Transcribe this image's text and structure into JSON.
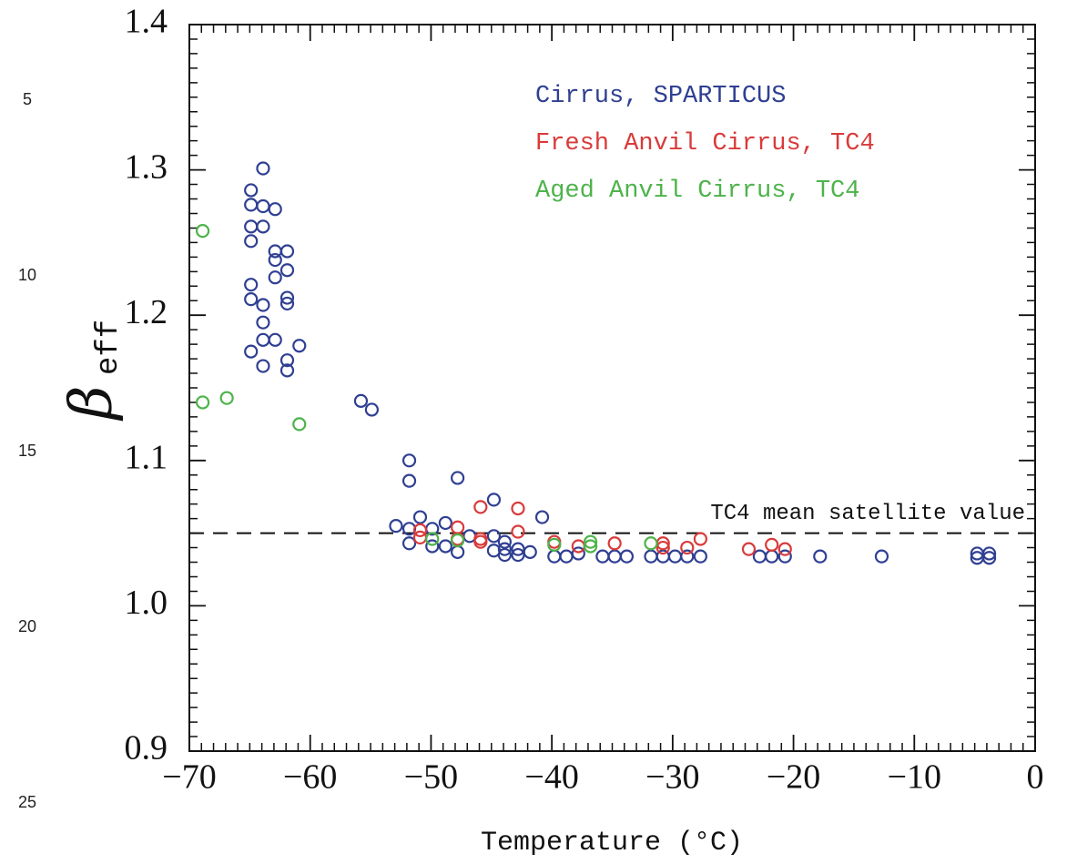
{
  "line_numbers": [
    "5",
    "10",
    "15",
    "20",
    "25"
  ],
  "chart_data": {
    "type": "scatter",
    "xlabel": "Temperature (°C)",
    "ylabel": "β",
    "ylabel_subscript": "eff",
    "xlim": [
      -70,
      0
    ],
    "ylim": [
      0.9,
      1.4
    ],
    "xticks": [
      {
        "value": -70,
        "label": "−70"
      },
      {
        "value": -60,
        "label": "−60"
      },
      {
        "value": -50,
        "label": "−50"
      },
      {
        "value": -40,
        "label": "−40"
      },
      {
        "value": -30,
        "label": "−30"
      },
      {
        "value": -20,
        "label": "−20"
      },
      {
        "value": -10,
        "label": "−10"
      },
      0
    ],
    "yticks": [
      0.9,
      {
        "value": 1,
        "label": "1.0"
      },
      1.1,
      1.2,
      1.3,
      1.4
    ],
    "reference_line": {
      "value": 1.05,
      "label": "TC4 mean satellite value"
    },
    "legend": "upper right",
    "series": [
      {
        "name": "Cirrus, SPARTICUS",
        "color": "#2f3f92",
        "x": [
          -63.9,
          -64.9,
          -64.9,
          -63.9,
          -62.9,
          -64.9,
          -63.9,
          -64.9,
          -62.9,
          -61.9,
          -62.9,
          -61.9,
          -62.9,
          -64.9,
          -64.9,
          -63.9,
          -61.9,
          -61.9,
          -63.9,
          -64.9,
          -63.9,
          -62.9,
          -60.9,
          -63.9,
          -61.9,
          -61.9,
          -55.8,
          -54.9,
          -51.8,
          -51.8,
          -47.8,
          -44.8,
          -40.8,
          -50.9,
          -52.9,
          -51.8,
          -48.8,
          -49.9,
          -51.8,
          -49.9,
          -48.8,
          -47.8,
          -44.8,
          -44.8,
          -43.9,
          -43.9,
          -43.9,
          -42.8,
          -42.8,
          -41.8,
          -46.8,
          -39.8,
          -38.8,
          -37.8,
          -35.8,
          -34.8,
          -33.8,
          -31.8,
          -30.8,
          -29.8,
          -28.8,
          -27.7,
          -22.8,
          -21.8,
          -20.7,
          -17.8,
          -12.7,
          -4.8,
          -4.8,
          -3.8,
          -3.8
        ],
        "values": [
          1.301,
          1.286,
          1.276,
          1.275,
          1.273,
          1.261,
          1.261,
          1.251,
          1.244,
          1.244,
          1.238,
          1.231,
          1.226,
          1.221,
          1.211,
          1.207,
          1.212,
          1.208,
          1.195,
          1.175,
          1.183,
          1.183,
          1.179,
          1.165,
          1.169,
          1.162,
          1.141,
          1.135,
          1.1,
          1.086,
          1.088,
          1.073,
          1.061,
          1.061,
          1.055,
          1.053,
          1.057,
          1.053,
          1.043,
          1.041,
          1.041,
          1.037,
          1.048,
          1.038,
          1.044,
          1.039,
          1.035,
          1.039,
          1.035,
          1.037,
          1.048,
          1.034,
          1.034,
          1.036,
          1.034,
          1.034,
          1.034,
          1.034,
          1.034,
          1.034,
          1.034,
          1.034,
          1.034,
          1.034,
          1.034,
          1.034,
          1.034,
          1.036,
          1.033,
          1.036,
          1.033
        ]
      },
      {
        "name": "Fresh Anvil Cirrus, TC4",
        "color": "#d93a3a",
        "x": [
          -45.9,
          -42.8,
          -42.8,
          -50.9,
          -50.9,
          -47.8,
          -47.8,
          -45.9,
          -45.9,
          -39.8,
          -37.8,
          -34.8,
          -30.8,
          -30.8,
          -28.8,
          -27.7,
          -23.7,
          -21.8,
          -20.7
        ],
        "values": [
          1.068,
          1.067,
          1.051,
          1.052,
          1.047,
          1.054,
          1.046,
          1.046,
          1.044,
          1.044,
          1.041,
          1.043,
          1.043,
          1.04,
          1.04,
          1.046,
          1.039,
          1.042,
          1.039
        ]
      },
      {
        "name": "Aged Anvil Cirrus, TC4",
        "color": "#4db34a",
        "x": [
          -68.9,
          -68.9,
          -66.9,
          -60.9,
          -49.9,
          -47.8,
          -39.8,
          -36.8,
          -36.8,
          -31.8
        ],
        "values": [
          1.258,
          1.14,
          1.143,
          1.125,
          1.046,
          1.045,
          1.042,
          1.041,
          1.044,
          1.043
        ]
      }
    ]
  }
}
